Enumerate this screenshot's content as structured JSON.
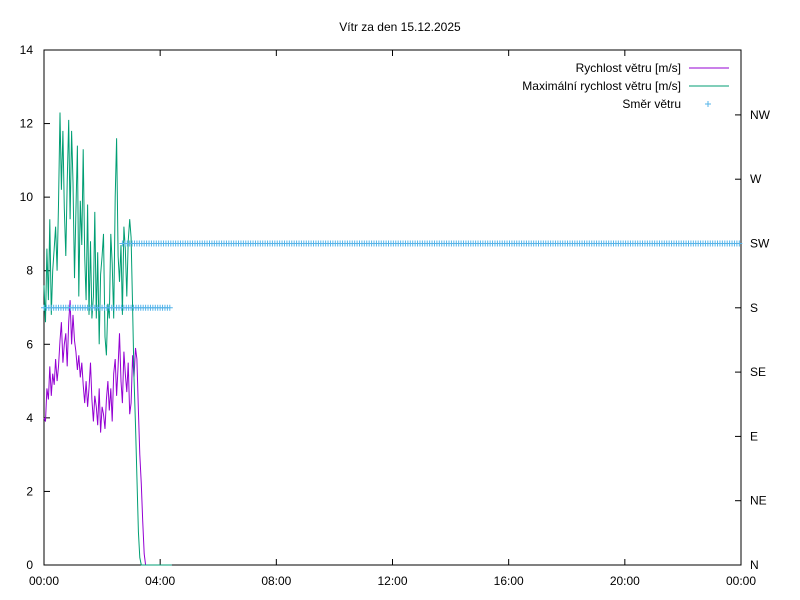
{
  "chart_data": {
    "type": "line",
    "title": "Vítr za den 15.12.2025",
    "x_ticks": [
      "00:00",
      "04:00",
      "08:00",
      "12:00",
      "16:00",
      "20:00",
      "00:00"
    ],
    "x_range_hours": [
      0,
      24
    ],
    "y_left": {
      "min": 0,
      "max": 14,
      "ticks": [
        0,
        2,
        4,
        6,
        8,
        10,
        12,
        14
      ]
    },
    "y_right": {
      "ticks": [
        "N",
        "NE",
        "E",
        "SE",
        "S",
        "SW",
        "W",
        "NW"
      ]
    },
    "grid": false,
    "legend_position": "top-right",
    "series": [
      {
        "name": "Rychlost větru [m/s]",
        "color": "#9400d3",
        "axis": "left",
        "x_hours": [
          0.0,
          0.05,
          0.1,
          0.15,
          0.2,
          0.25,
          0.3,
          0.35,
          0.4,
          0.45,
          0.5,
          0.55,
          0.6,
          0.65,
          0.7,
          0.75,
          0.8,
          0.85,
          0.9,
          0.95,
          1.0,
          1.05,
          1.1,
          1.15,
          1.2,
          1.25,
          1.3,
          1.35,
          1.4,
          1.45,
          1.5,
          1.55,
          1.6,
          1.65,
          1.7,
          1.75,
          1.8,
          1.85,
          1.9,
          1.95,
          2.0,
          2.05,
          2.1,
          2.15,
          2.2,
          2.25,
          2.3,
          2.35,
          2.4,
          2.45,
          2.5,
          2.55,
          2.6,
          2.65,
          2.7,
          2.75,
          2.8,
          2.85,
          2.9,
          2.95,
          3.0,
          3.05,
          3.1,
          3.15,
          3.2,
          3.25,
          3.3,
          3.35,
          3.4,
          3.45,
          3.5,
          3.55,
          3.6,
          3.65,
          3.7,
          3.75,
          3.8,
          3.85,
          3.9,
          3.95,
          4.0,
          4.05,
          4.1,
          4.15,
          4.2,
          4.25,
          4.3,
          4.35,
          4.4
        ],
        "values": [
          4.0,
          3.9,
          4.8,
          4.5,
          5.4,
          4.6,
          5.2,
          4.9,
          5.6,
          5.0,
          5.4,
          6.1,
          6.6,
          5.5,
          6.0,
          6.3,
          5.4,
          6.6,
          7.2,
          6.0,
          6.8,
          6.1,
          5.8,
          5.3,
          5.7,
          5.1,
          5.5,
          4.9,
          4.4,
          5.0,
          4.3,
          4.8,
          5.5,
          4.5,
          3.9,
          4.6,
          4.3,
          3.8,
          4.8,
          3.6,
          4.3,
          4.1,
          3.7,
          4.5,
          5.0,
          4.2,
          4.8,
          3.9,
          5.2,
          5.6,
          4.6,
          5.4,
          6.3,
          5.0,
          4.4,
          5.8,
          5.2,
          4.7,
          5.5,
          4.1,
          4.4,
          5.7,
          5.1,
          5.9,
          5.6,
          4.2,
          3.0,
          2.2,
          1.2,
          0.3,
          0.0,
          0.0,
          0.0,
          0.0,
          0.0,
          0.0,
          0.0,
          0.0,
          0.0,
          0.0,
          0.0,
          0.0,
          0.0,
          0.0,
          0.0,
          0.0,
          0.0,
          0.0,
          0.0
        ]
      },
      {
        "name": "Maximální rychlost větru [m/s]",
        "color": "#009e73",
        "axis": "left",
        "x_hours": [
          0.0,
          0.05,
          0.1,
          0.15,
          0.2,
          0.25,
          0.3,
          0.35,
          0.4,
          0.45,
          0.5,
          0.55,
          0.6,
          0.65,
          0.7,
          0.75,
          0.8,
          0.85,
          0.9,
          0.95,
          1.0,
          1.05,
          1.1,
          1.15,
          1.2,
          1.25,
          1.3,
          1.35,
          1.4,
          1.45,
          1.5,
          1.55,
          1.6,
          1.65,
          1.7,
          1.75,
          1.8,
          1.85,
          1.9,
          1.95,
          2.0,
          2.05,
          2.1,
          2.15,
          2.2,
          2.25,
          2.3,
          2.35,
          2.4,
          2.45,
          2.5,
          2.55,
          2.6,
          2.65,
          2.7,
          2.75,
          2.8,
          2.85,
          2.9,
          2.95,
          3.0,
          3.05,
          3.1,
          3.15,
          3.2,
          3.25,
          3.3,
          3.35,
          3.4,
          3.45,
          3.5,
          3.55,
          3.6,
          3.65,
          3.7,
          3.75,
          3.8,
          3.85,
          3.9,
          3.95,
          4.0,
          4.05,
          4.1,
          4.15,
          4.2,
          4.25,
          4.3,
          4.35,
          4.4
        ],
        "values": [
          7.6,
          6.6,
          8.6,
          7.2,
          9.4,
          6.8,
          8.0,
          8.6,
          9.2,
          8.0,
          9.8,
          12.3,
          10.2,
          11.8,
          9.7,
          8.4,
          10.4,
          12.1,
          9.4,
          11.8,
          10.4,
          7.8,
          9.6,
          11.4,
          7.3,
          9.9,
          8.7,
          11.3,
          8.4,
          7.2,
          9.8,
          6.8,
          8.8,
          6.7,
          7.3,
          9.6,
          6.7,
          8.5,
          6.0,
          7.9,
          8.4,
          9.0,
          6.2,
          5.7,
          7.1,
          6.7,
          9.0,
          8.2,
          6.7,
          10.0,
          11.6,
          8.4,
          7.7,
          8.7,
          6.8,
          9.2,
          8.6,
          7.3,
          8.8,
          9.4,
          8.9,
          7.0,
          5.1,
          3.8,
          2.4,
          0.9,
          0.2,
          0.0,
          0.0,
          0.0,
          0.0,
          0.0,
          0.0,
          0.0,
          0.0,
          0.0,
          0.0,
          0.0,
          0.0,
          0.0,
          0.0,
          0.0,
          0.0,
          0.0,
          0.0,
          0.0,
          0.0,
          0.0,
          0.0
        ]
      },
      {
        "name": "Směr větru",
        "color": "#56b4e9",
        "axis": "right",
        "style": "points",
        "segments": [
          {
            "from_hour": 0.0,
            "to_hour": 4.4,
            "direction": "S"
          },
          {
            "from_hour": 2.7,
            "to_hour": 24.0,
            "direction": "SW"
          }
        ]
      }
    ]
  }
}
